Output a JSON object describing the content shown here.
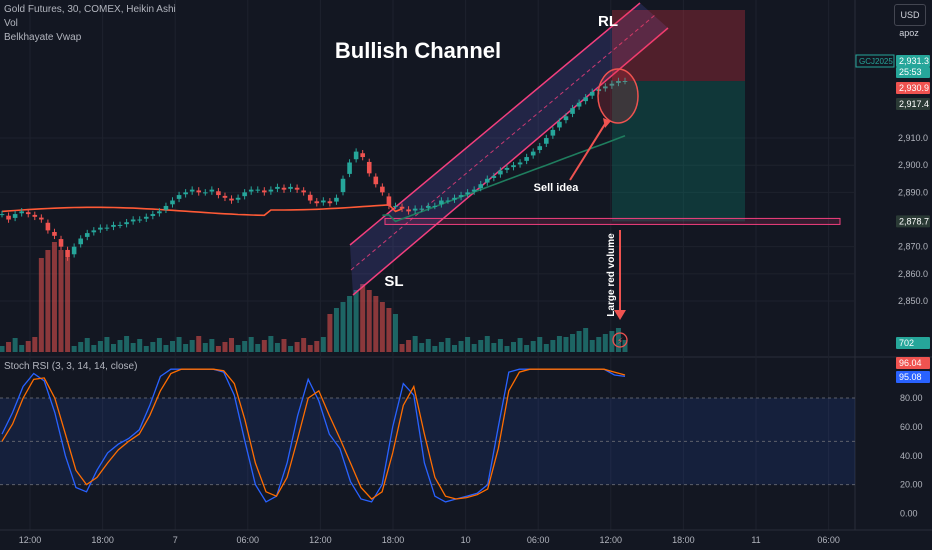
{
  "header": {
    "symbol_line": "Gold Futures, 30, COMEX, Heikin Ashi",
    "indicator_vol": "Vol",
    "indicator_vwap": "Belkhayate Vwap",
    "oscillator_label": "Stoch RSI (3, 3, 14, 14, close)"
  },
  "toolbar": {
    "currency": "USD",
    "scale_option": "apoz"
  },
  "colors": {
    "background": "#131722",
    "bull": "#26a69a",
    "bear": "#ef5350",
    "channel": "#f23f7e",
    "vwap": "#ff5a36",
    "stoch_k": "#2962ff",
    "stoch_d": "#ff6d00"
  },
  "annotations": {
    "title": "Bullish Channel",
    "rl": "RL",
    "sl": "SL",
    "sell_idea": "Sell idea",
    "large_red_volume": "Large red volume"
  },
  "chart_data": [
    {
      "type": "candlestick",
      "subtype": "heikin-ashi",
      "x_tick_labels": [
        "12:00",
        "18:00",
        "7",
        "06:00",
        "12:00",
        "18:00",
        "10",
        "06:00",
        "12:00",
        "18:00",
        "11",
        "06:00"
      ],
      "y_tick_labels": [
        "2,910.0",
        "2,900.0",
        "2,890.0",
        "2,870.0",
        "2,860.0",
        "2,850.0"
      ],
      "price_badges": [
        {
          "label": "GCJ2025",
          "value": "2,931.3",
          "sub": "25:53",
          "kind": "bull"
        },
        {
          "value": "2,930.9",
          "kind": "bear"
        },
        {
          "value": "2,917.4",
          "kind": "dark"
        },
        {
          "value": "2,878.7",
          "kind": "dark"
        }
      ],
      "volume_badge": "702",
      "ylim": [
        2843,
        2938
      ],
      "support_level": 2879.3,
      "close_path": [
        2882,
        2880,
        2882,
        2883,
        2882,
        2881,
        2880,
        2876,
        2874,
        2870,
        2866,
        2870,
        2873,
        2875,
        2876,
        2877,
        2877,
        2878,
        2878,
        2879,
        2880,
        2880,
        2881,
        2882,
        2883,
        2885,
        2887,
        2889,
        2890,
        2891,
        2890,
        2890,
        2891,
        2889,
        2888,
        2887,
        2888,
        2890,
        2891,
        2891,
        2890,
        2891,
        2892,
        2891,
        2892,
        2891,
        2890,
        2887,
        2886,
        2887,
        2886,
        2888,
        2895,
        2901,
        2905,
        2903,
        2897,
        2893,
        2890,
        2885,
        2885,
        2884,
        2883,
        2884,
        2884,
        2885,
        2885,
        2887,
        2887,
        2888,
        2889,
        2890,
        2891,
        2893,
        2895,
        2896,
        2898,
        2899,
        2900,
        2901,
        2903,
        2905,
        2907,
        2910,
        2913,
        2916,
        2918,
        2921,
        2923,
        2925,
        2927,
        2928,
        2929,
        2930,
        2931,
        2931
      ]
    },
    {
      "type": "line",
      "name": "Stoch RSI",
      "y_tick_labels": [
        "80.00",
        "60.00",
        "40.00",
        "20.00",
        "0.00"
      ],
      "ylim": [
        -8,
        105
      ],
      "badges": [
        {
          "value": "96.04",
          "kind": "d"
        },
        {
          "value": "95.08",
          "kind": "k"
        }
      ],
      "series": [
        {
          "key": "k",
          "values": [
            55,
            70,
            88,
            97,
            92,
            70,
            40,
            18,
            15,
            30,
            42,
            48,
            52,
            58,
            75,
            95,
            100,
            100,
            100,
            100,
            100,
            98,
            82,
            50,
            20,
            8,
            12,
            35,
            68,
            93,
            78,
            55,
            45,
            22,
            10,
            8,
            20,
            60,
            90,
            82,
            35,
            12,
            8,
            10,
            12,
            14,
            20,
            60,
            98,
            100,
            100,
            100,
            100,
            100,
            100,
            100,
            100,
            100,
            96,
            95
          ]
        },
        {
          "key": "d",
          "values": [
            50,
            62,
            80,
            93,
            94,
            80,
            55,
            30,
            20,
            25,
            35,
            44,
            50,
            55,
            68,
            85,
            97,
            100,
            100,
            100,
            100,
            99,
            90,
            65,
            35,
            15,
            12,
            25,
            52,
            80,
            85,
            68,
            52,
            35,
            18,
            10,
            15,
            42,
            75,
            88,
            55,
            25,
            12,
            10,
            11,
            13,
            17,
            45,
            85,
            98,
            100,
            100,
            100,
            100,
            100,
            100,
            100,
            100,
            98,
            96
          ]
        }
      ]
    }
  ]
}
